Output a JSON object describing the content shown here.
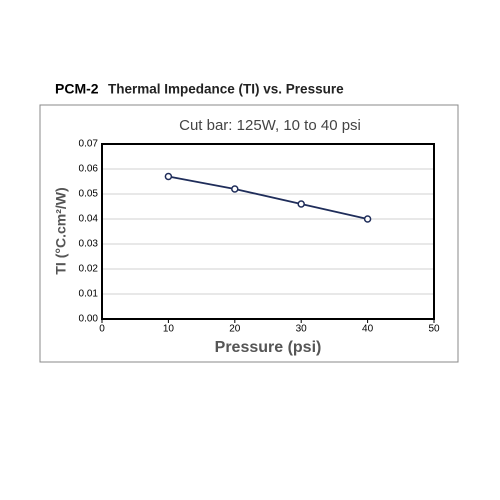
{
  "chart_data": {
    "type": "line",
    "heading": "PCM-2",
    "title": "Thermal Impedance (TI) vs. Pressure",
    "subtitle": "Cut bar: 125W, 10 to 40 psi",
    "x_label": "Pressure (psi)",
    "y_label": "TI (°C.cm²/W)",
    "x": [
      10,
      20,
      30,
      40
    ],
    "values": [
      0.057,
      0.052,
      0.046,
      0.04
    ],
    "color": "#1f2d5a",
    "xlim": [
      0,
      50
    ],
    "xticks": [
      0,
      10,
      20,
      30,
      40,
      50
    ],
    "ylim": [
      0,
      0.07
    ],
    "yticks": [
      {
        "value": 0,
        "label": "0.00"
      },
      0.01,
      0.02,
      0.03,
      0.04,
      0.05,
      0.06,
      0.07
    ],
    "grid": true
  }
}
